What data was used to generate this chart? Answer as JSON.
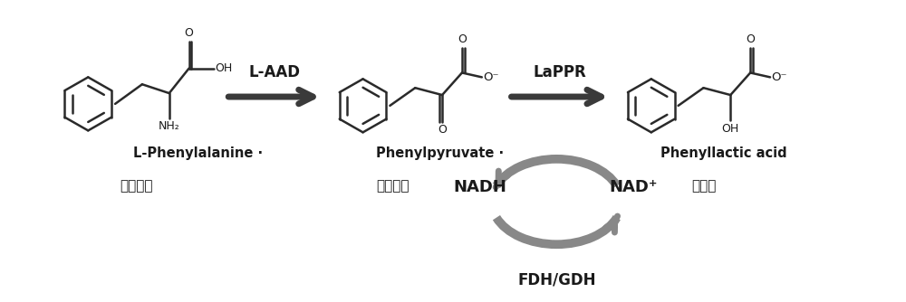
{
  "bg_color": "#ffffff",
  "fig_width": 10.0,
  "fig_height": 3.34,
  "dpi": 100,
  "label_laad": "L-AAD",
  "label_lappr": "LaPPR",
  "label_l_phe": "L-Phenylalanine",
  "label_l_phe_dot": " ·",
  "label_l_phe_cn": "苯丙氨酸",
  "label_phenylpyruvate": "Phenylpyruvate",
  "label_phenylpyruvate_dot": "·",
  "label_phenylpyruvate_cn": "苯丙酮酸",
  "label_phenyllactic": "Phenyllactic acid",
  "label_phenyllactic_cn": "苯乳酸",
  "label_nadh": "NADH",
  "label_nad": "NAD⁺",
  "label_fdh": "FDH/GDH",
  "text_color": "#1a1a1a",
  "struct_color": "#2a2a2a",
  "bold_arrow_color": "#3a3a3a",
  "cycle_arrow_color": "#888888"
}
